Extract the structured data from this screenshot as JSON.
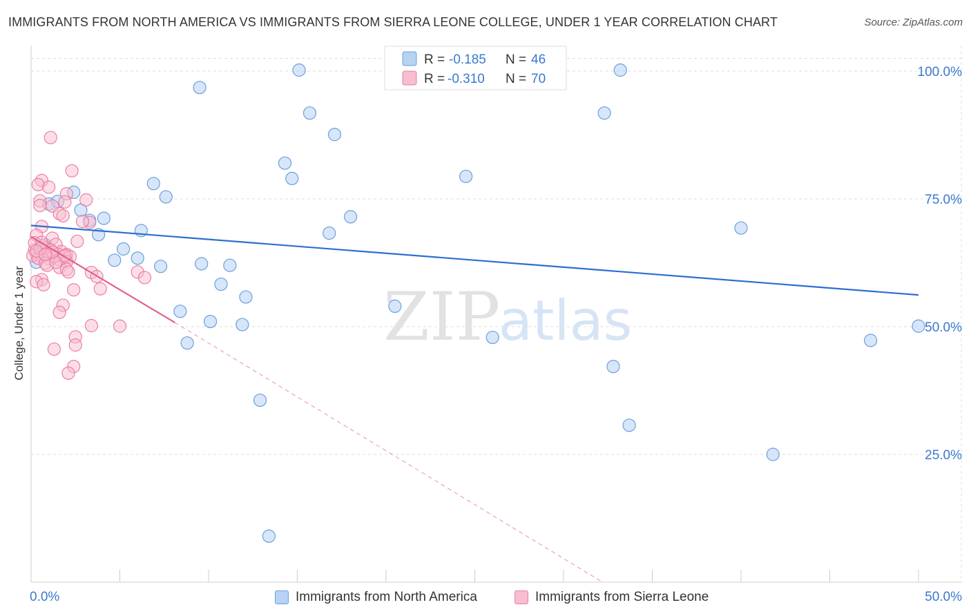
{
  "title": "IMMIGRANTS FROM NORTH AMERICA VS IMMIGRANTS FROM SIERRA LEONE COLLEGE, UNDER 1 YEAR CORRELATION CHART",
  "source": "Source: ZipAtlas.com",
  "watermark": {
    "zip": "ZIP",
    "atlas": "atlas"
  },
  "colors": {
    "blue_fill": "#b7d2f3",
    "blue_stroke": "#6a9fe0",
    "blue_line": "#2b6fd1",
    "blue_text": "#3a78cf",
    "pink_fill": "#f7bdd0",
    "pink_stroke": "#ea7fa3",
    "pink_line": "#e0608e",
    "grid": "#dddddd",
    "axis": "#cccccc"
  },
  "legend": [
    {
      "r_label": "R =",
      "r_value": "-0.185",
      "n_label": "N =",
      "n_value": "46"
    },
    {
      "r_label": "R =",
      "r_value": "-0.310",
      "n_label": "N =",
      "n_value": "70"
    }
  ],
  "chart_data": {
    "type": "scatter",
    "xlabel": "",
    "ylabel": "College, Under 1 year",
    "xlim": [
      0,
      50
    ],
    "ylim": [
      0,
      105
    ],
    "x_tick_labels": [
      "0.0%",
      "50.0%"
    ],
    "y_ticks": [
      25,
      50,
      75,
      100
    ],
    "y_tick_labels": [
      "25.0%",
      "50.0%",
      "75.0%",
      "100.0%"
    ],
    "grid": true,
    "legend_position": "top-center",
    "series": [
      {
        "name": "Immigrants from North America",
        "color": "#b7d2f3",
        "trend": {
          "x0": 0,
          "y0": 69.8,
          "x1": 50,
          "y1": 56.2
        },
        "points": [
          [
            15.1,
            100.2
          ],
          [
            33.2,
            100.2
          ],
          [
            9.5,
            96.8
          ],
          [
            15.7,
            91.8
          ],
          [
            32.3,
            91.8
          ],
          [
            17.1,
            87.6
          ],
          [
            14.3,
            82.0
          ],
          [
            14.7,
            79.0
          ],
          [
            24.5,
            79.4
          ],
          [
            6.9,
            78.0
          ],
          [
            2.4,
            76.3
          ],
          [
            7.6,
            75.4
          ],
          [
            1.0,
            74.0
          ],
          [
            2.8,
            72.8
          ],
          [
            3.3,
            70.8
          ],
          [
            4.1,
            71.2
          ],
          [
            18.0,
            71.5
          ],
          [
            6.2,
            68.8
          ],
          [
            16.8,
            68.3
          ],
          [
            40.0,
            69.3
          ],
          [
            3.8,
            68.0
          ],
          [
            5.2,
            65.2
          ],
          [
            6.0,
            63.4
          ],
          [
            4.7,
            63.0
          ],
          [
            7.3,
            61.8
          ],
          [
            9.6,
            62.3
          ],
          [
            11.2,
            62.0
          ],
          [
            10.7,
            58.3
          ],
          [
            12.1,
            55.8
          ],
          [
            0.3,
            62.6
          ],
          [
            0.5,
            64.5
          ],
          [
            8.4,
            53.0
          ],
          [
            20.5,
            54.0
          ],
          [
            10.1,
            51.0
          ],
          [
            11.9,
            50.4
          ],
          [
            50.0,
            50.1
          ],
          [
            26.0,
            47.9
          ],
          [
            47.3,
            47.3
          ],
          [
            8.8,
            46.8
          ],
          [
            32.8,
            42.2
          ],
          [
            12.9,
            35.6
          ],
          [
            33.7,
            30.7
          ],
          [
            41.8,
            25.0
          ],
          [
            13.4,
            9.0
          ],
          [
            1.5,
            74.5
          ],
          [
            0.8,
            66.0
          ]
        ]
      },
      {
        "name": "Immigrants from Sierra Leone",
        "color": "#f7bdd0",
        "trend": {
          "x0": 0,
          "y0": 67.6,
          "x1": 8.1,
          "y1": 50.8
        },
        "trend_ext": {
          "x0": 8.1,
          "y0": 50.8,
          "x1": 32.2,
          "y1": 0
        },
        "points": [
          [
            1.1,
            87.0
          ],
          [
            2.3,
            80.5
          ],
          [
            0.6,
            78.6
          ],
          [
            0.4,
            77.8
          ],
          [
            1.0,
            77.3
          ],
          [
            2.0,
            76.0
          ],
          [
            3.1,
            74.8
          ],
          [
            0.5,
            74.6
          ],
          [
            1.9,
            74.4
          ],
          [
            0.5,
            73.7
          ],
          [
            1.2,
            73.6
          ],
          [
            1.6,
            72.1
          ],
          [
            1.8,
            71.7
          ],
          [
            3.3,
            70.4
          ],
          [
            0.6,
            69.6
          ],
          [
            0.3,
            67.9
          ],
          [
            1.2,
            67.3
          ],
          [
            2.6,
            66.7
          ],
          [
            0.6,
            65.8
          ],
          [
            0.9,
            65.4
          ],
          [
            1.4,
            66.1
          ],
          [
            0.2,
            65.0
          ],
          [
            0.7,
            64.9
          ],
          [
            1.1,
            65.0
          ],
          [
            1.7,
            64.7
          ],
          [
            0.3,
            64.3
          ],
          [
            0.9,
            64.2
          ],
          [
            1.5,
            64.2
          ],
          [
            2.0,
            64.1
          ],
          [
            0.1,
            63.9
          ],
          [
            0.6,
            63.7
          ],
          [
            1.3,
            63.8
          ],
          [
            1.8,
            63.7
          ],
          [
            2.2,
            63.7
          ],
          [
            0.4,
            63.4
          ],
          [
            1.0,
            63.3
          ],
          [
            1.6,
            63.1
          ],
          [
            2.0,
            62.7
          ],
          [
            0.8,
            62.4
          ],
          [
            1.6,
            61.6
          ],
          [
            2.0,
            61.2
          ],
          [
            3.4,
            60.6
          ],
          [
            6.0,
            60.7
          ],
          [
            2.1,
            60.7
          ],
          [
            3.7,
            59.8
          ],
          [
            6.4,
            59.6
          ],
          [
            0.6,
            59.2
          ],
          [
            0.3,
            58.8
          ],
          [
            0.7,
            58.2
          ],
          [
            3.9,
            57.4
          ],
          [
            2.4,
            57.2
          ],
          [
            1.8,
            54.2
          ],
          [
            1.6,
            52.8
          ],
          [
            3.4,
            50.2
          ],
          [
            5.0,
            50.1
          ],
          [
            2.5,
            48.0
          ],
          [
            2.5,
            46.4
          ],
          [
            1.3,
            45.6
          ],
          [
            2.4,
            42.2
          ],
          [
            2.1,
            40.9
          ],
          [
            0.9,
            62.0
          ],
          [
            1.4,
            62.6
          ],
          [
            0.2,
            66.4
          ],
          [
            2.9,
            70.6
          ],
          [
            0.6,
            66.5
          ],
          [
            1.9,
            63.9
          ],
          [
            1.2,
            64.6
          ],
          [
            0.5,
            65.3
          ],
          [
            0.3,
            64.8
          ],
          [
            0.8,
            64.1
          ]
        ]
      }
    ]
  }
}
